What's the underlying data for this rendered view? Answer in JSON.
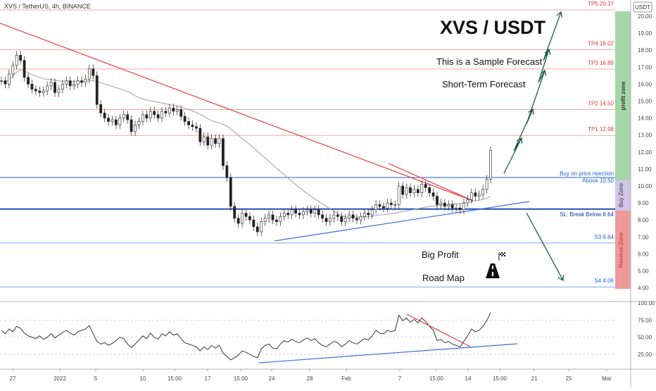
{
  "header": {
    "symbol_line": "XVS / TetherUS, 4h, BINANCE",
    "currency_badge": "USDT"
  },
  "annotations": {
    "title": "XVS / USDT",
    "sample": "This is a Sample Forecast",
    "short_term": "Short-Term Forecast",
    "big_profit": "Big Profit",
    "road_map": "Road Map"
  },
  "zones": {
    "profit": "profit zone",
    "buy": "Buy Zone",
    "reverse": "Reverse Zone"
  },
  "chart_data": {
    "type": "line",
    "title": "XVS / USDT",
    "price_axis": {
      "ylim": [
        4.0,
        20.4
      ],
      "ticks": [
        20.0,
        19.0,
        18.0,
        17.0,
        16.0,
        15.0,
        14.0,
        13.0,
        12.0,
        11.0,
        10.0,
        9.0,
        8.0,
        7.0,
        6.0,
        5.0,
        4.0
      ],
      "tick_labels": [
        "20.00",
        "19.00",
        "18.00",
        "17.00",
        "16.00",
        "15.00",
        "14.00",
        "13.00",
        "12.00",
        "11.00",
        "10.00",
        "9.00",
        "8.00",
        "7.00",
        "6.00",
        "5.00",
        "4.00"
      ]
    },
    "rsi_axis": {
      "ylim": [
        10,
        100
      ],
      "ticks": [
        100,
        75,
        50,
        25
      ],
      "tick_labels": [
        "100.00",
        "75.00",
        "50.00",
        "25.00"
      ]
    },
    "x_axis": {
      "ticks": [
        "27",
        "2022",
        "5",
        "10",
        "15:00",
        "17",
        "15:00",
        "24",
        "28",
        "Feb",
        "7",
        "15:00",
        "14",
        "15:00",
        "21",
        "25",
        "Mar"
      ]
    },
    "levels": [
      {
        "name": "TP5",
        "label": "TP5 20.37",
        "value": 20.37,
        "color": "#e53935"
      },
      {
        "name": "TP4",
        "label": "TP4 18.02",
        "value": 18.02,
        "color": "#e53935"
      },
      {
        "name": "TP3",
        "label": "TP3 16.89",
        "value": 16.89,
        "color": "#e53935"
      },
      {
        "name": "TP2",
        "label": "TP2 14.50",
        "value": 14.5,
        "color": "#e53935"
      },
      {
        "name": "TP1",
        "label": "TP1 12.98",
        "value": 12.98,
        "color": "#e53935"
      },
      {
        "name": "Buy",
        "label": "Buy on price rejection",
        "label2": "Above 10.50",
        "value": 10.5,
        "color": "#1e63d6"
      },
      {
        "name": "SL",
        "label": "SL: Break Below 8.64",
        "value": 8.64,
        "color": "#0d3aa9"
      },
      {
        "name": "S3",
        "label": "S3 6.64",
        "value": 6.64,
        "color": "#1e63d6"
      },
      {
        "name": "S4",
        "label": "S4 4.06",
        "value": 4.06,
        "color": "#1e63d6"
      }
    ],
    "series": [
      {
        "name": "",
        "values": [
          16.2,
          16.0,
          16.6,
          17.1,
          17.7,
          17.4,
          16.4,
          16.0,
          15.7,
          15.6,
          15.5,
          15.6,
          15.9,
          16.1,
          15.5,
          15.7,
          16.0,
          16.2,
          15.9,
          16.0,
          16.2,
          16.1,
          16.3,
          16.9,
          16.5,
          14.8,
          14.3,
          14.0,
          13.8,
          13.9,
          13.6,
          14.0,
          14.2,
          13.9,
          13.2,
          13.6,
          13.8,
          14.2,
          14.0,
          14.4,
          14.2,
          14.0,
          14.4,
          14.3,
          14.6,
          14.4,
          14.5,
          14.1,
          13.8,
          13.6,
          13.5,
          13.4,
          12.6,
          12.9,
          12.4,
          12.8,
          12.5,
          12.8,
          11.2,
          10.5,
          8.8,
          8.1,
          7.8,
          8.4,
          8.2,
          8.0,
          7.6,
          7.3,
          7.9,
          8.1,
          8.3,
          8.0,
          7.9,
          8.2,
          8.4,
          8.3,
          8.6,
          8.4,
          8.3,
          8.5,
          8.6,
          8.4,
          8.6,
          8.3,
          8.1,
          7.9,
          8.1,
          8.3,
          8.2,
          7.9,
          8.1,
          8.3,
          8.1,
          8.0,
          8.2,
          8.4,
          8.3,
          8.6,
          8.9,
          8.8,
          8.7,
          9.0,
          8.9,
          8.9,
          10.0,
          9.5,
          9.9,
          9.6,
          9.8,
          9.6,
          10.1,
          9.9,
          9.6,
          9.4,
          8.9,
          9.0,
          8.8,
          8.9,
          8.7,
          8.7,
          8.6,
          9.0,
          9.2,
          9.6,
          9.4,
          9.5,
          9.8,
          10.4,
          12.1
        ]
      }
    ],
    "rsi": {
      "name": "",
      "values": [
        60,
        55,
        62,
        58,
        66,
        63,
        56,
        52,
        50,
        48,
        52,
        47,
        50,
        55,
        49,
        53,
        57,
        60,
        56,
        53,
        58,
        60,
        62,
        67,
        55,
        44,
        40,
        42,
        38,
        41,
        45,
        50,
        48,
        40,
        35,
        40,
        46,
        52,
        48,
        56,
        50,
        47,
        55,
        52,
        58,
        53,
        55,
        48,
        42,
        40,
        38,
        36,
        30,
        36,
        32,
        38,
        34,
        38,
        27,
        22,
        17,
        20,
        24,
        30,
        28,
        25,
        22,
        20,
        33,
        38,
        40,
        34,
        33,
        40,
        45,
        43,
        47,
        44,
        42,
        46,
        49,
        45,
        48,
        42,
        38,
        36,
        40,
        44,
        42,
        36,
        40,
        45,
        42,
        40,
        44,
        48,
        46,
        52,
        60,
        56,
        55,
        60,
        58,
        60,
        82,
        74,
        78,
        72,
        76,
        71,
        78,
        73,
        66,
        60,
        45,
        47,
        42,
        44,
        40,
        38,
        36,
        44,
        52,
        62,
        58,
        60,
        66,
        74,
        86
      ]
    }
  }
}
